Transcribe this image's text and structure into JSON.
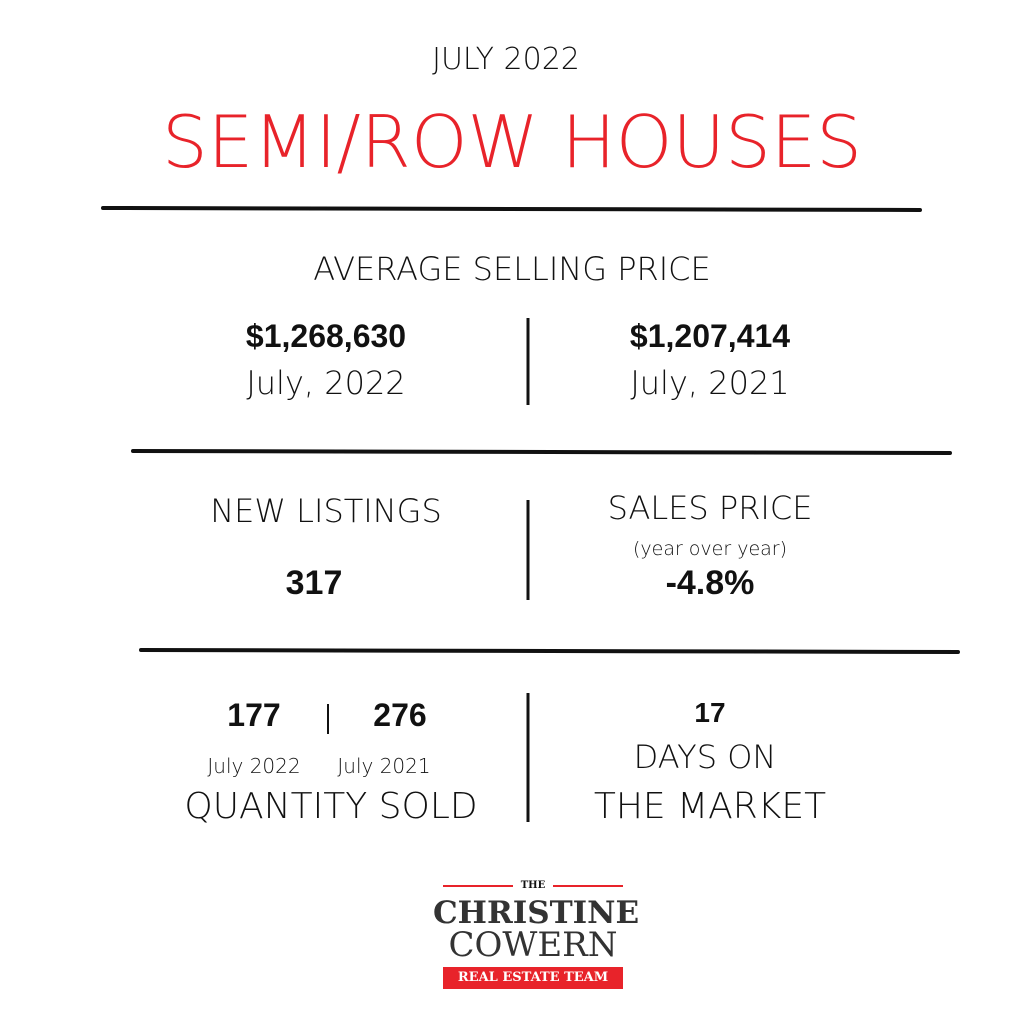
{
  "header": {
    "month": "JULY 2022",
    "title": "SEMI/ROW HOUSES"
  },
  "average_price": {
    "heading": "AVERAGE SELLING PRICE",
    "current": {
      "value": "$1,268,630",
      "period": "July, 2022"
    },
    "previous": {
      "value": "$1,207,414",
      "period": "July, 2021"
    }
  },
  "new_listings": {
    "heading": "NEW LISTINGS",
    "value": "317"
  },
  "sales_price": {
    "heading": "SALES PRICE",
    "note": "(year over year)",
    "value": "-4.8%"
  },
  "quantity_sold": {
    "current": {
      "value": "177",
      "period": "July 2022"
    },
    "previous": {
      "value": "276",
      "period": "July 2021"
    },
    "heading": "QUANTITY SOLD"
  },
  "days_on_market": {
    "value": "17",
    "line1": "DAYS ON",
    "line2": "THE MARKET"
  },
  "logo": {
    "the": "THE",
    "first": "CHRISTINE",
    "last": "COWERN",
    "tagline": "REAL ESTATE TEAM"
  }
}
